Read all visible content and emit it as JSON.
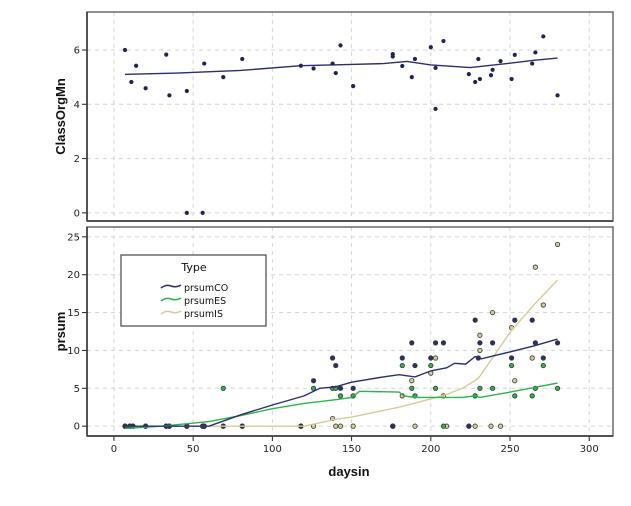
{
  "chart_data": [
    {
      "type": "scatter",
      "panel": "top",
      "ylabel": "ClassOrgMn",
      "xlabel": "",
      "xlim": [
        -17,
        315
      ],
      "ylim": [
        -0.3,
        7.4
      ],
      "x_ticks": [
        "0",
        "50",
        "100",
        "150",
        "200",
        "250",
        "300"
      ],
      "x_tick_values": [
        0,
        50,
        100,
        150,
        200,
        250,
        300
      ],
      "y_ticks": [
        "0",
        "2",
        "4",
        "6"
      ],
      "y_tick_values": [
        0,
        2,
        4,
        6
      ],
      "grid": true,
      "color": "#1f2456",
      "points": [
        [
          7,
          6.0
        ],
        [
          11,
          4.82
        ],
        [
          14,
          5.42
        ],
        [
          20,
          4.59
        ],
        [
          33,
          5.83
        ],
        [
          35,
          4.33
        ],
        [
          46,
          4.49
        ],
        [
          46,
          0
        ],
        [
          56,
          0
        ],
        [
          57,
          5.5
        ],
        [
          69,
          5.0
        ],
        [
          81,
          5.67
        ],
        [
          118,
          5.42
        ],
        [
          126,
          5.32
        ],
        [
          138,
          5.5
        ],
        [
          140,
          5.15
        ],
        [
          143,
          6.17
        ],
        [
          151,
          4.67
        ],
        [
          176,
          5.85
        ],
        [
          176,
          5.76
        ],
        [
          182,
          5.41
        ],
        [
          188,
          5.0
        ],
        [
          190,
          5.67
        ],
        [
          200,
          6.1
        ],
        [
          203,
          5.34
        ],
        [
          203,
          3.83
        ],
        [
          208,
          6.33
        ],
        [
          224,
          5.11
        ],
        [
          228,
          4.82
        ],
        [
          230,
          5.67
        ],
        [
          231,
          4.93
        ],
        [
          238,
          5.07
        ],
        [
          239,
          5.27
        ],
        [
          244,
          5.59
        ],
        [
          251,
          4.93
        ],
        [
          253,
          5.82
        ],
        [
          264,
          5.5
        ],
        [
          266,
          5.91
        ],
        [
          271,
          6.5
        ],
        [
          280,
          4.33
        ]
      ],
      "fit_line": [
        [
          7,
          5.1
        ],
        [
          40,
          5.15
        ],
        [
          80,
          5.25
        ],
        [
          118,
          5.42
        ],
        [
          150,
          5.47
        ],
        [
          170,
          5.5
        ],
        [
          185,
          5.58
        ],
        [
          200,
          5.45
        ],
        [
          225,
          5.35
        ],
        [
          245,
          5.48
        ],
        [
          265,
          5.62
        ],
        [
          280,
          5.7
        ]
      ]
    },
    {
      "type": "scatter",
      "panel": "bottom",
      "ylabel": "prsum",
      "xlabel": "daysin",
      "xlim": [
        -17,
        315
      ],
      "ylim": [
        -1.3,
        26.3
      ],
      "x_ticks": [
        "0",
        "50",
        "100",
        "150",
        "200",
        "250",
        "300"
      ],
      "x_tick_values": [
        0,
        50,
        100,
        150,
        200,
        250,
        300
      ],
      "y_ticks": [
        "0",
        "5",
        "10",
        "15",
        "20",
        "25"
      ],
      "y_tick_values": [
        0,
        5,
        10,
        15,
        20,
        25
      ],
      "grid": true,
      "legend": {
        "title": "Type",
        "position": "top-left"
      },
      "series": [
        {
          "name": "prsumCO",
          "color": "#2b2f6e",
          "points": [
            [
              7,
              0
            ],
            [
              10,
              0
            ],
            [
              12,
              0
            ],
            [
              20,
              0
            ],
            [
              33,
              0
            ],
            [
              35,
              0
            ],
            [
              46,
              0
            ],
            [
              56,
              0
            ],
            [
              57,
              0
            ],
            [
              69,
              0
            ],
            [
              81,
              0
            ],
            [
              118,
              0
            ],
            [
              126,
              6
            ],
            [
              138,
              9
            ],
            [
              140,
              8
            ],
            [
              143,
              5
            ],
            [
              151,
              5
            ],
            [
              176,
              0
            ],
            [
              182,
              9
            ],
            [
              188,
              11
            ],
            [
              190,
              8
            ],
            [
              200,
              9
            ],
            [
              203,
              11
            ],
            [
              208,
              11
            ],
            [
              224,
              0
            ],
            [
              228,
              14
            ],
            [
              230,
              9
            ],
            [
              231,
              11
            ],
            [
              239,
              11
            ],
            [
              251,
              9
            ],
            [
              253,
              14
            ],
            [
              264,
              14
            ],
            [
              266,
              11
            ],
            [
              271,
              9
            ],
            [
              280,
              11
            ]
          ],
          "fit_line": [
            [
              7,
              0
            ],
            [
              30,
              0
            ],
            [
              60,
              0
            ],
            [
              80,
              1.5
            ],
            [
              100,
              2.8
            ],
            [
              120,
              4.0
            ],
            [
              130,
              5.0
            ],
            [
              140,
              5.2
            ],
            [
              150,
              5.8
            ],
            [
              170,
              6.5
            ],
            [
              180,
              6.8
            ],
            [
              190,
              6.5
            ],
            [
              200,
              7.3
            ],
            [
              210,
              7.7
            ],
            [
              215,
              8.3
            ],
            [
              222,
              8.2
            ],
            [
              228,
              9.2
            ],
            [
              232,
              8.9
            ],
            [
              250,
              9.8
            ],
            [
              265,
              10.6
            ],
            [
              280,
              11.5
            ]
          ]
        },
        {
          "name": "prsumES",
          "color": "#2db34a",
          "points": [
            [
              7,
              0
            ],
            [
              10,
              0
            ],
            [
              12,
              0
            ],
            [
              20,
              0
            ],
            [
              33,
              0
            ],
            [
              35,
              0
            ],
            [
              46,
              0
            ],
            [
              56,
              0
            ],
            [
              57,
              0
            ],
            [
              69,
              5
            ],
            [
              81,
              0
            ],
            [
              118,
              0
            ],
            [
              126,
              5
            ],
            [
              138,
              5
            ],
            [
              140,
              5
            ],
            [
              143,
              4
            ],
            [
              151,
              4
            ],
            [
              176,
              0
            ],
            [
              182,
              8
            ],
            [
              188,
              5
            ],
            [
              190,
              4
            ],
            [
              200,
              8
            ],
            [
              203,
              5
            ],
            [
              208,
              0
            ],
            [
              228,
              4
            ],
            [
              231,
              5
            ],
            [
              239,
              5
            ],
            [
              251,
              8
            ],
            [
              253,
              4
            ],
            [
              264,
              4
            ],
            [
              266,
              5
            ],
            [
              271,
              8
            ],
            [
              280,
              5
            ]
          ],
          "fit_line": [
            [
              7,
              -0.3
            ],
            [
              30,
              0
            ],
            [
              60,
              0.6
            ],
            [
              80,
              1.4
            ],
            [
              100,
              2.3
            ],
            [
              120,
              3.0
            ],
            [
              140,
              3.5
            ],
            [
              150,
              3.8
            ],
            [
              155,
              4.6
            ],
            [
              180,
              4.5
            ],
            [
              183,
              4.0
            ],
            [
              190,
              3.8
            ],
            [
              220,
              3.8
            ],
            [
              228,
              4.0
            ],
            [
              231,
              3.8
            ],
            [
              250,
              4.5
            ],
            [
              280,
              5.7
            ]
          ]
        },
        {
          "name": "prsumIS",
          "color": "#d8cc98",
          "points": [
            [
              7,
              0
            ],
            [
              10,
              0
            ],
            [
              12,
              0
            ],
            [
              20,
              0
            ],
            [
              33,
              0
            ],
            [
              35,
              0
            ],
            [
              46,
              0
            ],
            [
              56,
              0
            ],
            [
              57,
              0
            ],
            [
              69,
              0
            ],
            [
              81,
              0
            ],
            [
              118,
              0
            ],
            [
              126,
              0
            ],
            [
              138,
              1
            ],
            [
              140,
              0
            ],
            [
              143,
              0
            ],
            [
              151,
              0
            ],
            [
              176,
              0
            ],
            [
              182,
              4
            ],
            [
              188,
              6
            ],
            [
              190,
              0
            ],
            [
              200,
              7
            ],
            [
              203,
              9
            ],
            [
              208,
              4
            ],
            [
              210,
              0
            ],
            [
              224,
              0
            ],
            [
              228,
              0
            ],
            [
              231,
              12
            ],
            [
              231,
              10
            ],
            [
              238,
              0
            ],
            [
              239,
              15
            ],
            [
              244,
              0
            ],
            [
              251,
              13
            ],
            [
              253,
              6
            ],
            [
              264,
              9
            ],
            [
              266,
              21
            ],
            [
              271,
              16
            ],
            [
              280,
              24
            ]
          ],
          "fit_line": [
            [
              7,
              0
            ],
            [
              60,
              0
            ],
            [
              120,
              0
            ],
            [
              140,
              0.9
            ],
            [
              150,
              1.2
            ],
            [
              180,
              2.5
            ],
            [
              200,
              3.6
            ],
            [
              210,
              4.2
            ],
            [
              220,
              5.0
            ],
            [
              230,
              6.3
            ],
            [
              240,
              9.3
            ],
            [
              250,
              12.4
            ],
            [
              265,
              16.0
            ],
            [
              280,
              19.3
            ]
          ]
        }
      ]
    }
  ]
}
